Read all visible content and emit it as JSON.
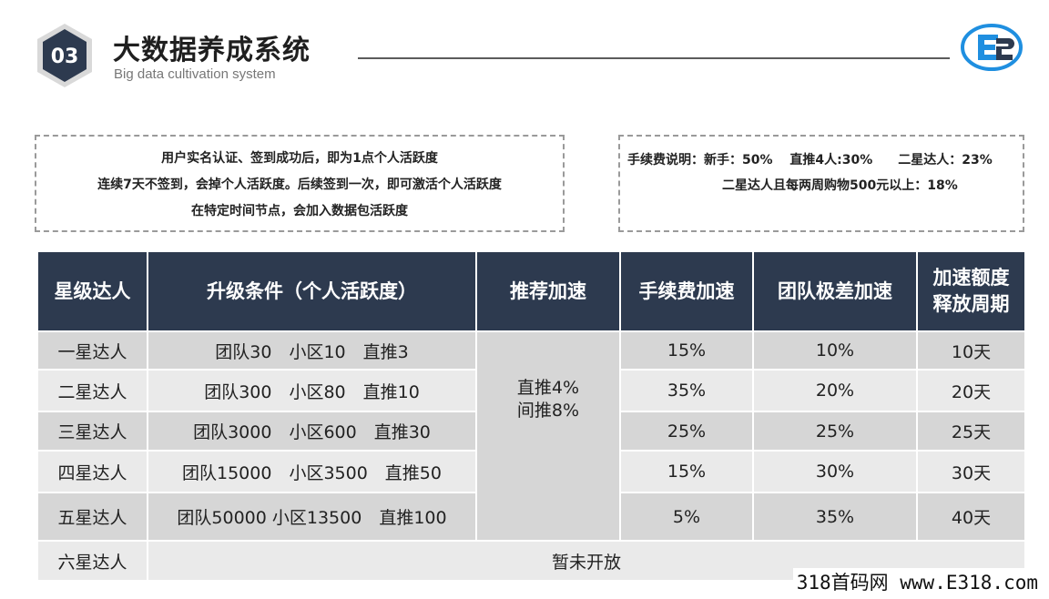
{
  "header": {
    "badge_number": "03",
    "title": "大数据养成系统",
    "subtitle": "Big data cultivation system"
  },
  "notes": {
    "activity_lines": [
      "用户实名认证、签到成功后，即为1点个人活跃度",
      "连续7天不签到，会掉个人活跃度。后续签到一次，即可激活个人活跃度",
      "在特定时间节点，会加入数据包活跃度"
    ],
    "fee_line_1": "手续费说明：新手：50%　 直推4人:30%　　二星达人：23%",
    "fee_line_2": "二星达人且每两周购物500元以上：18%"
  },
  "table": {
    "headers": [
      "星级达人",
      "升级条件（个人活跃度）",
      "推荐加速",
      "手续费加速",
      "团队极差加速",
      "加速额度",
      "释放周期"
    ],
    "rows": [
      {
        "level": "一星达人",
        "condition": "团队30　小区10　直推3",
        "fee": "15%",
        "team": "10%",
        "period": "10天"
      },
      {
        "level": "二星达人",
        "condition": "团队300　小区80　直推10",
        "fee": "35%",
        "team": "20%",
        "period": "20天"
      },
      {
        "level": "三星达人",
        "condition": "团队3000　小区600　直推30",
        "fee": "25%",
        "team": "25%",
        "period": "25天"
      },
      {
        "level": "四星达人",
        "condition": "团队15000　小区3500　直推50",
        "fee": "15%",
        "team": "30%",
        "period": "30天"
      },
      {
        "level": "五星达人",
        "condition": "团队50000  小区13500　直推100",
        "fee": "5%",
        "team": "35%",
        "period": "40天"
      }
    ],
    "recommend_line_1": "直推4%",
    "recommend_line_2": "间推8%",
    "last_row": {
      "level": "六星达人",
      "status": "暂未开放"
    }
  },
  "footer": {
    "watermark": "318首码网 www.E318.com"
  },
  "colors": {
    "header_bg": "#2d3a4f",
    "row_dark": "#d6d6d6",
    "row_light": "#eaeaea",
    "logo_blue": "#1f8fe0"
  }
}
